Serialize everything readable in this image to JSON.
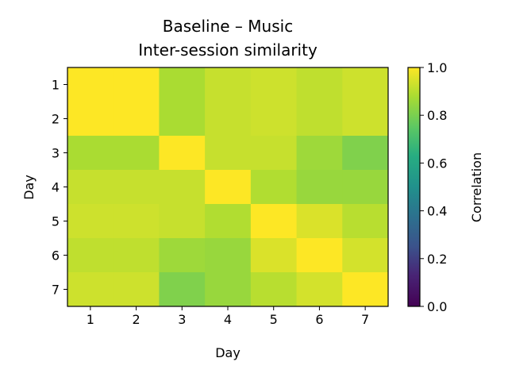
{
  "chart_data": {
    "type": "heatmap",
    "title": "Baseline – Music",
    "subtitle": "Inter-session similarity",
    "xlabel": "Day",
    "ylabel": "Day",
    "x_categories": [
      "1",
      "2",
      "3",
      "4",
      "5",
      "6",
      "7"
    ],
    "y_categories": [
      "1",
      "2",
      "3",
      "4",
      "5",
      "6",
      "7"
    ],
    "values": [
      [
        1.0,
        1.0,
        0.88,
        0.92,
        0.93,
        0.91,
        0.93
      ],
      [
        1.0,
        1.0,
        0.88,
        0.92,
        0.93,
        0.91,
        0.93
      ],
      [
        0.88,
        0.88,
        1.0,
        0.92,
        0.92,
        0.86,
        0.81
      ],
      [
        0.92,
        0.92,
        0.92,
        1.0,
        0.89,
        0.85,
        0.85
      ],
      [
        0.93,
        0.93,
        0.92,
        0.89,
        1.0,
        0.95,
        0.9
      ],
      [
        0.91,
        0.91,
        0.86,
        0.85,
        0.95,
        1.0,
        0.94
      ],
      [
        0.93,
        0.93,
        0.81,
        0.85,
        0.9,
        0.94,
        1.0
      ]
    ],
    "colormap": "viridis",
    "color_range": [
      0.0,
      1.0
    ],
    "colorbar": {
      "label": "Correlation",
      "ticks": [
        "0.0",
        "0.2",
        "0.4",
        "0.6",
        "0.8",
        "1.0"
      ]
    },
    "grid": false
  }
}
